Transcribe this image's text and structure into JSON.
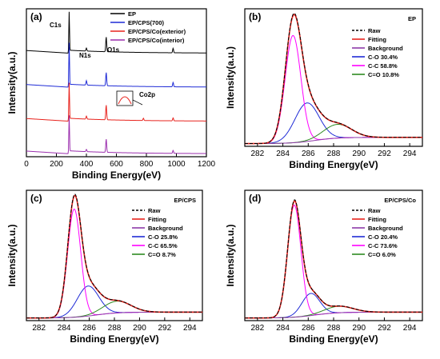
{
  "chart_data": [
    {
      "type": "line",
      "panel": "(a)",
      "xlabel": "Binding Energy(eV)",
      "ylabel": "Intensity(a.u.)",
      "xlim": [
        0,
        1200
      ],
      "xticks": [
        0,
        200,
        400,
        600,
        800,
        1000,
        1200
      ],
      "legend": "top-right",
      "series": [
        {
          "name": "EP",
          "color": "#000000",
          "baseline": 0.7,
          "peaks": [
            {
              "x": 285,
              "h": 0.28
            },
            {
              "x": 400,
              "h": 0.02
            },
            {
              "x": 532,
              "h": 0.1
            },
            {
              "x": 978,
              "h": 0.03
            }
          ]
        },
        {
          "name": "EP/CPS(700)",
          "color": "#1f2bd6",
          "baseline": 0.47,
          "peaks": [
            {
              "x": 285,
              "h": 0.3
            },
            {
              "x": 400,
              "h": 0.03
            },
            {
              "x": 532,
              "h": 0.09
            },
            {
              "x": 978,
              "h": 0.03
            }
          ]
        },
        {
          "name": "EP/CPS/Co(exterior)",
          "color": "#e8231d",
          "baseline": 0.24,
          "peaks": [
            {
              "x": 285,
              "h": 0.26
            },
            {
              "x": 400,
              "h": 0.02
            },
            {
              "x": 532,
              "h": 0.1
            },
            {
              "x": 780,
              "h": 0.015
            },
            {
              "x": 978,
              "h": 0.02
            }
          ]
        },
        {
          "name": "EP/CPS/Co(interior)",
          "color": "#9b2fae",
          "baseline": 0.02,
          "peaks": [
            {
              "x": 285,
              "h": 0.26
            },
            {
              "x": 400,
              "h": 0.015
            },
            {
              "x": 532,
              "h": 0.09
            },
            {
              "x": 978,
              "h": 0.02
            }
          ]
        }
      ],
      "annotations": [
        "C1s",
        "N1s",
        "O1s",
        "Co2p"
      ]
    },
    {
      "type": "line",
      "panel": "(b)",
      "label": "EP",
      "xlabel": "Binding Energy(eV)",
      "ylabel": "Intensity(a.u.)",
      "xlim": [
        281,
        295
      ],
      "xticks": [
        282,
        284,
        286,
        288,
        290,
        292,
        294
      ],
      "legend": "top-right",
      "series": [
        {
          "name": "Raw",
          "color": "#000000",
          "style": "dashed"
        },
        {
          "name": "Fitting",
          "color": "#e8231d",
          "style": "solid"
        },
        {
          "name": "Background",
          "color": "#8e3aa8",
          "style": "solid"
        },
        {
          "name": "C-O 30.4%",
          "color": "#1f2bd6",
          "center": 285.9,
          "height": 0.28,
          "width": 0.95
        },
        {
          "name": "C-C 58.8%",
          "color": "#ff00ff",
          "center": 284.8,
          "height": 0.78,
          "width": 0.62
        },
        {
          "name": "C=O 10.8%",
          "color": "#2e8b22",
          "center": 288.3,
          "height": 0.1,
          "width": 1.1
        }
      ]
    },
    {
      "type": "line",
      "panel": "(c)",
      "label": "EP/CPS",
      "xlabel": "Binding Energy(eV)",
      "ylabel": "Intensity(a.u.)",
      "xlim": [
        281,
        295
      ],
      "xticks": [
        282,
        284,
        286,
        288,
        290,
        292,
        294
      ],
      "legend": "top-right",
      "series": [
        {
          "name": "Raw",
          "color": "#000000",
          "style": "dashed"
        },
        {
          "name": "Fitting",
          "color": "#e8231d",
          "style": "solid"
        },
        {
          "name": "Background",
          "color": "#8e3aa8",
          "style": "solid"
        },
        {
          "name": "C-O 25.8%",
          "color": "#1f2bd6",
          "center": 285.9,
          "height": 0.23,
          "width": 0.85
        },
        {
          "name": "C-C 65.5%",
          "color": "#ff00ff",
          "center": 284.8,
          "height": 0.83,
          "width": 0.52
        },
        {
          "name": "C=O 8.7%",
          "color": "#2e8b22",
          "center": 288.2,
          "height": 0.09,
          "width": 1.1
        }
      ]
    },
    {
      "type": "line",
      "panel": "(d)",
      "label": "EP/CPS/Co",
      "xlabel": "Binding Energy(eV)",
      "ylabel": "Intensity(a.u.)",
      "xlim": [
        281,
        295
      ],
      "xticks": [
        282,
        284,
        286,
        288,
        290,
        292,
        294
      ],
      "legend": "top-right",
      "series": [
        {
          "name": "Raw",
          "color": "#000000",
          "style": "dashed"
        },
        {
          "name": "Fitting",
          "color": "#e8231d",
          "style": "solid"
        },
        {
          "name": "Background",
          "color": "#8e3aa8",
          "style": "solid"
        },
        {
          "name": "C-O 20.4%",
          "color": "#1f2bd6",
          "center": 286.2,
          "height": 0.17,
          "width": 0.7
        },
        {
          "name": "C-C 73.6%",
          "color": "#ff00ff",
          "center": 284.9,
          "height": 0.86,
          "width": 0.52
        },
        {
          "name": "C=O 6.0%",
          "color": "#2e8b22",
          "center": 288.4,
          "height": 0.05,
          "width": 1.1
        }
      ]
    }
  ]
}
